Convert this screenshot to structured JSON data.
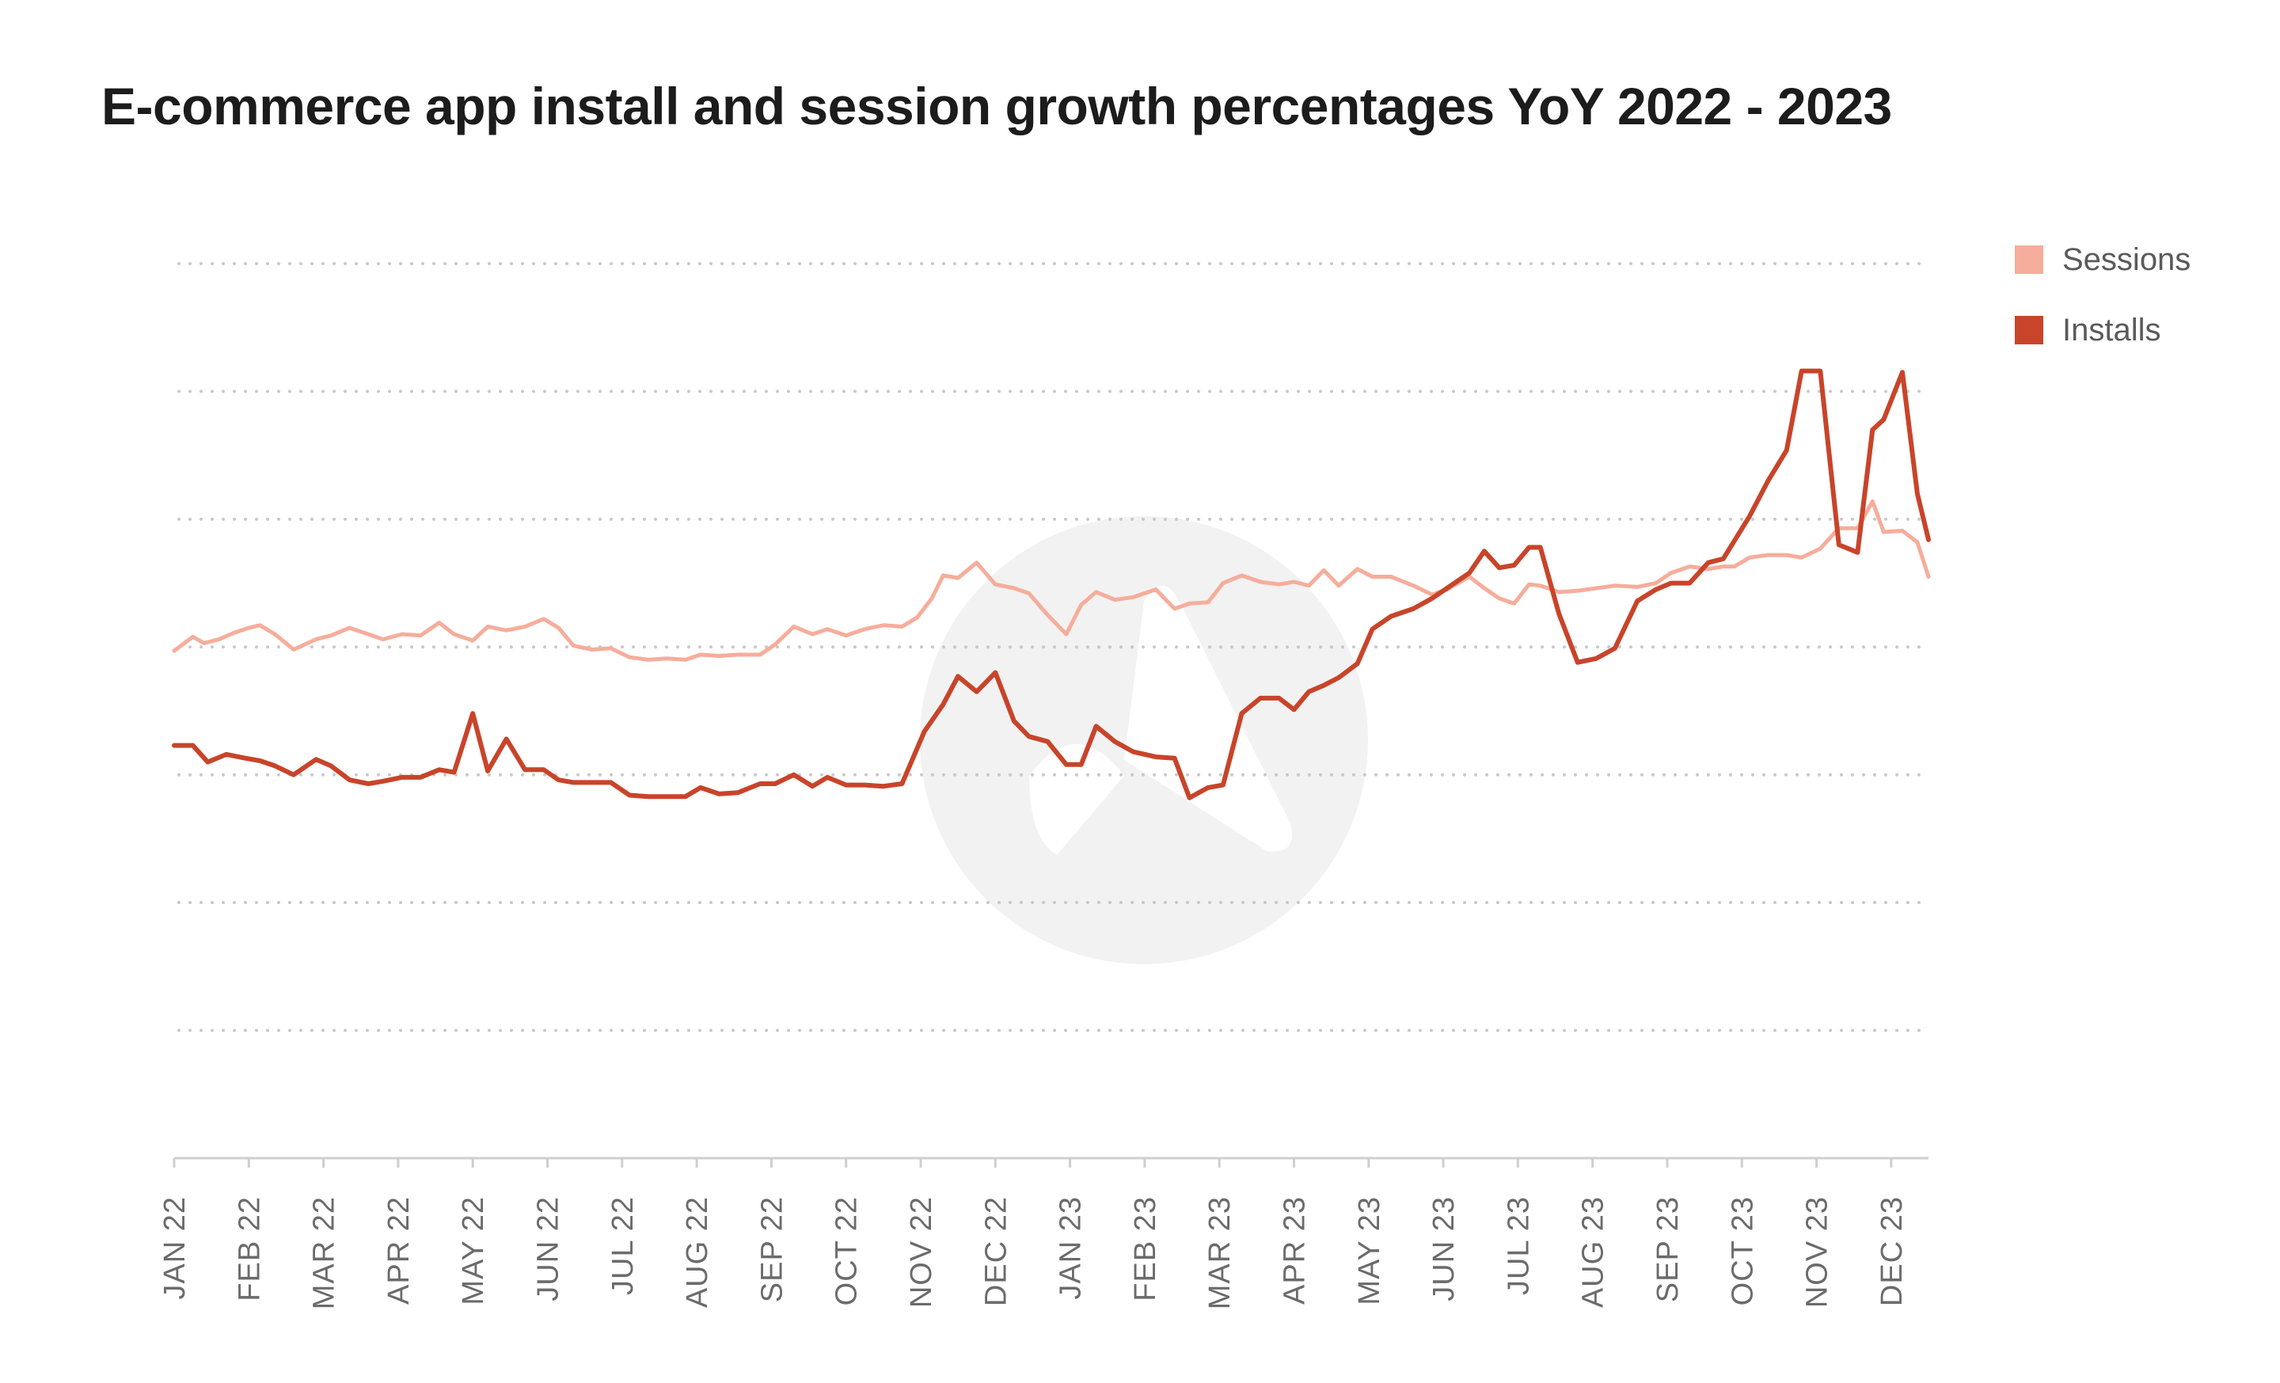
{
  "chart_data": {
    "type": "line",
    "title": "E-commerce app install and session growth percentages YoY 2022 - 2023",
    "xlabel": "",
    "ylabel": "",
    "grid": true,
    "legend_position": "top-right",
    "y_axis": {
      "range": [
        0,
        7
      ],
      "gridlines": [
        1,
        2,
        3,
        4,
        5,
        6,
        7
      ],
      "tick_labels_shown": false
    },
    "x_tick_labels": [
      "JAN 22",
      "FEB 22",
      "MAR 22",
      "APR 22",
      "MAY 22",
      "JUN 22",
      "JUL 22",
      "AUG 22",
      "SEP 22",
      "OCT 22",
      "NOV 22",
      "DEC 22",
      "JAN 23",
      "FEB 23",
      "MAR 23",
      "APR 23",
      "MAY 23",
      "JUN 23",
      "JUL 23",
      "AUG 23",
      "SEP 23",
      "OCT 23",
      "NOV 23",
      "DEC 23"
    ],
    "x_range": [
      0,
      23.5
    ],
    "series": [
      {
        "name": "Sessions",
        "color": "#f6ad9b",
        "points": [
          [
            0,
            3.97
          ],
          [
            0.25,
            4.08
          ],
          [
            0.4,
            4.03
          ],
          [
            0.6,
            4.06
          ],
          [
            0.8,
            4.11
          ],
          [
            1,
            4.15
          ],
          [
            1.15,
            4.17
          ],
          [
            1.35,
            4.1
          ],
          [
            1.6,
            3.98
          ],
          [
            1.9,
            4.06
          ],
          [
            2.1,
            4.09
          ],
          [
            2.35,
            4.15
          ],
          [
            2.6,
            4.1
          ],
          [
            2.8,
            4.06
          ],
          [
            3.05,
            4.1
          ],
          [
            3.3,
            4.09
          ],
          [
            3.55,
            4.19
          ],
          [
            3.75,
            4.1
          ],
          [
            4,
            4.05
          ],
          [
            4.2,
            4.16
          ],
          [
            4.45,
            4.13
          ],
          [
            4.7,
            4.16
          ],
          [
            4.95,
            4.22
          ],
          [
            5.15,
            4.15
          ],
          [
            5.35,
            4.01
          ],
          [
            5.6,
            3.98
          ],
          [
            5.85,
            3.99
          ],
          [
            6.1,
            3.92
          ],
          [
            6.35,
            3.9
          ],
          [
            6.6,
            3.91
          ],
          [
            6.85,
            3.9
          ],
          [
            7.05,
            3.94
          ],
          [
            7.3,
            3.93
          ],
          [
            7.55,
            3.94
          ],
          [
            7.85,
            3.94
          ],
          [
            8.05,
            4.02
          ],
          [
            8.3,
            4.16
          ],
          [
            8.55,
            4.1
          ],
          [
            8.75,
            4.14
          ],
          [
            9,
            4.09
          ],
          [
            9.25,
            4.14
          ],
          [
            9.5,
            4.17
          ],
          [
            9.75,
            4.16
          ],
          [
            9.95,
            4.23
          ],
          [
            10.15,
            4.38
          ],
          [
            10.3,
            4.56
          ],
          [
            10.5,
            4.54
          ],
          [
            10.75,
            4.66
          ],
          [
            11,
            4.49
          ],
          [
            11.25,
            4.46
          ],
          [
            11.45,
            4.42
          ],
          [
            11.7,
            4.25
          ],
          [
            11.95,
            4.1
          ],
          [
            12.15,
            4.33
          ],
          [
            12.35,
            4.43
          ],
          [
            12.6,
            4.37
          ],
          [
            12.85,
            4.39
          ],
          [
            13.15,
            4.45
          ],
          [
            13.4,
            4.3
          ],
          [
            13.6,
            4.34
          ],
          [
            13.85,
            4.35
          ],
          [
            14.05,
            4.5
          ],
          [
            14.3,
            4.56
          ],
          [
            14.55,
            4.51
          ],
          [
            14.8,
            4.49
          ],
          [
            15,
            4.51
          ],
          [
            15.2,
            4.48
          ],
          [
            15.4,
            4.6
          ],
          [
            15.6,
            4.48
          ],
          [
            15.85,
            4.61
          ],
          [
            16.05,
            4.55
          ],
          [
            16.3,
            4.55
          ],
          [
            16.6,
            4.48
          ],
          [
            16.85,
            4.41
          ],
          [
            17.05,
            4.45
          ],
          [
            17.35,
            4.55
          ],
          [
            17.55,
            4.46
          ],
          [
            17.75,
            4.38
          ],
          [
            17.95,
            4.34
          ],
          [
            18.15,
            4.49
          ],
          [
            18.3,
            4.48
          ],
          [
            18.55,
            4.43
          ],
          [
            18.8,
            4.44
          ],
          [
            19.05,
            4.46
          ],
          [
            19.3,
            4.48
          ],
          [
            19.6,
            4.47
          ],
          [
            19.85,
            4.5
          ],
          [
            20.05,
            4.58
          ],
          [
            20.3,
            4.63
          ],
          [
            20.55,
            4.61
          ],
          [
            20.75,
            4.63
          ],
          [
            20.9,
            4.63
          ],
          [
            21.1,
            4.7
          ],
          [
            21.35,
            4.72
          ],
          [
            21.6,
            4.72
          ],
          [
            21.8,
            4.7
          ],
          [
            22.05,
            4.77
          ],
          [
            22.3,
            4.93
          ],
          [
            22.55,
            4.93
          ],
          [
            22.75,
            5.14
          ],
          [
            22.9,
            4.9
          ],
          [
            23.15,
            4.91
          ],
          [
            23.35,
            4.82
          ],
          [
            23.5,
            4.55
          ]
        ]
      },
      {
        "name": "Installs",
        "color": "#c8442a",
        "points": [
          [
            0,
            3.23
          ],
          [
            0.25,
            3.23
          ],
          [
            0.45,
            3.1
          ],
          [
            0.7,
            3.16
          ],
          [
            0.95,
            3.13
          ],
          [
            1.15,
            3.11
          ],
          [
            1.35,
            3.07
          ],
          [
            1.6,
            3
          ],
          [
            1.9,
            3.12
          ],
          [
            2.1,
            3.07
          ],
          [
            2.35,
            2.96
          ],
          [
            2.6,
            2.93
          ],
          [
            2.8,
            2.95
          ],
          [
            3.05,
            2.98
          ],
          [
            3.3,
            2.98
          ],
          [
            3.55,
            3.04
          ],
          [
            3.75,
            3.02
          ],
          [
            4,
            3.48
          ],
          [
            4.2,
            3.03
          ],
          [
            4.45,
            3.28
          ],
          [
            4.7,
            3.04
          ],
          [
            4.95,
            3.04
          ],
          [
            5.15,
            2.96
          ],
          [
            5.35,
            2.94
          ],
          [
            5.6,
            2.94
          ],
          [
            5.85,
            2.94
          ],
          [
            6.1,
            2.84
          ],
          [
            6.35,
            2.83
          ],
          [
            6.6,
            2.83
          ],
          [
            6.85,
            2.83
          ],
          [
            7.05,
            2.9
          ],
          [
            7.3,
            2.85
          ],
          [
            7.55,
            2.86
          ],
          [
            7.85,
            2.93
          ],
          [
            8.05,
            2.93
          ],
          [
            8.3,
            3
          ],
          [
            8.55,
            2.91
          ],
          [
            8.75,
            2.98
          ],
          [
            9,
            2.92
          ],
          [
            9.25,
            2.92
          ],
          [
            9.5,
            2.91
          ],
          [
            9.75,
            2.93
          ],
          [
            10.05,
            3.34
          ],
          [
            10.3,
            3.55
          ],
          [
            10.5,
            3.77
          ],
          [
            10.75,
            3.65
          ],
          [
            11,
            3.8
          ],
          [
            11.25,
            3.42
          ],
          [
            11.45,
            3.3
          ],
          [
            11.7,
            3.26
          ],
          [
            11.95,
            3.08
          ],
          [
            12.15,
            3.08
          ],
          [
            12.35,
            3.38
          ],
          [
            12.6,
            3.26
          ],
          [
            12.85,
            3.18
          ],
          [
            13.15,
            3.14
          ],
          [
            13.4,
            3.13
          ],
          [
            13.6,
            2.82
          ],
          [
            13.85,
            2.9
          ],
          [
            14.05,
            2.92
          ],
          [
            14.3,
            3.48
          ],
          [
            14.55,
            3.6
          ],
          [
            14.8,
            3.6
          ],
          [
            15,
            3.51
          ],
          [
            15.2,
            3.65
          ],
          [
            15.4,
            3.7
          ],
          [
            15.6,
            3.76
          ],
          [
            15.85,
            3.87
          ],
          [
            16.05,
            4.14
          ],
          [
            16.3,
            4.24
          ],
          [
            16.6,
            4.3
          ],
          [
            16.85,
            4.38
          ],
          [
            17.05,
            4.46
          ],
          [
            17.35,
            4.58
          ],
          [
            17.55,
            4.75
          ],
          [
            17.75,
            4.62
          ],
          [
            17.95,
            4.64
          ],
          [
            18.15,
            4.78
          ],
          [
            18.3,
            4.78
          ],
          [
            18.55,
            4.26
          ],
          [
            18.8,
            3.88
          ],
          [
            19.05,
            3.91
          ],
          [
            19.3,
            3.99
          ],
          [
            19.6,
            4.36
          ],
          [
            19.85,
            4.45
          ],
          [
            20.05,
            4.5
          ],
          [
            20.3,
            4.5
          ],
          [
            20.55,
            4.66
          ],
          [
            20.75,
            4.69
          ],
          [
            21.1,
            5.02
          ],
          [
            21.35,
            5.3
          ],
          [
            21.6,
            5.54
          ],
          [
            21.8,
            6.16
          ],
          [
            22.05,
            6.16
          ],
          [
            22.3,
            4.8
          ],
          [
            22.55,
            4.74
          ],
          [
            22.75,
            5.7
          ],
          [
            22.9,
            5.78
          ],
          [
            23.15,
            6.15
          ],
          [
            23.35,
            5.2
          ],
          [
            23.5,
            4.84
          ]
        ]
      }
    ]
  }
}
